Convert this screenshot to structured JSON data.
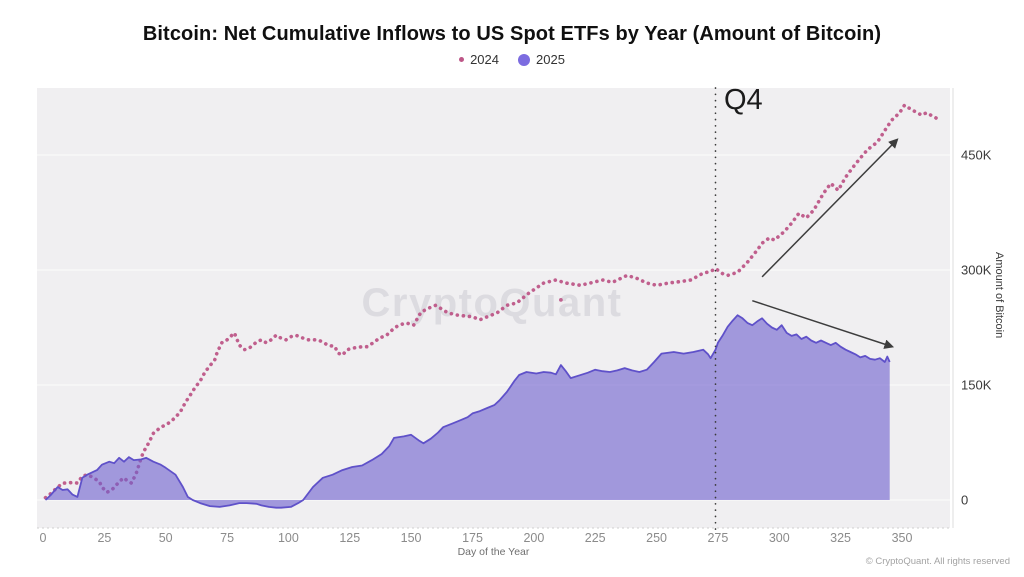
{
  "title": "Bitcoin: Net Cumulative Inflows to US Spot ETFs by Year (Amount of Bitcoin)",
  "watermark": "CryptoQuant",
  "footer": "© CryptoQuant. All rights reserved",
  "legend": [
    {
      "label": "2024",
      "color": "#bd5687",
      "marker": "small-dot"
    },
    {
      "label": "2025",
      "color": "#7c6ce0",
      "marker": "large-dot"
    }
  ],
  "colors": {
    "plot_bg": "#f0eff1",
    "grid": "#fafafa",
    "axis_edge": "#cfcfcf",
    "right_axis_line": "#dddddd",
    "series_2024": "#bd5687",
    "series_2025_stroke": "#5f51c9",
    "series_2025_fill": "#6c5ecf",
    "q4_line": "#3a3a3a",
    "arrow": "#3d3d3d",
    "watermark": "#dcdbe0",
    "x_tick_text": "#8b8b8b",
    "y_tick_text": "#3a3a3a"
  },
  "chart_data": {
    "type": "line",
    "title": "Bitcoin: Net Cumulative Inflows to US Spot ETFs by Year (Amount of Bitcoin)",
    "xlabel": "Day of the Year",
    "ylabel": "Amount of Bitcoin",
    "unit": "thousand BTC",
    "x_range_days": [
      0,
      373
    ],
    "y_range_kbtc": [
      -36,
      537
    ],
    "grid": true,
    "legend_position": "top-center",
    "q4_label": "Q4",
    "q4_line_day": 274,
    "x_ticks": [
      0,
      25,
      50,
      75,
      100,
      125,
      150,
      175,
      200,
      225,
      250,
      275,
      300,
      325,
      350
    ],
    "y_ticks": [
      {
        "value": 0,
        "label": "0"
      },
      {
        "value": 150,
        "label": "150K"
      },
      {
        "value": 300,
        "label": "300K"
      },
      {
        "value": 450,
        "label": "450K"
      }
    ],
    "series": [
      {
        "name": "2024",
        "style": "dotted-line",
        "points": [
          [
            1,
            3
          ],
          [
            3,
            8
          ],
          [
            5,
            14
          ],
          [
            8,
            22
          ],
          [
            10,
            22
          ],
          [
            12,
            23
          ],
          [
            14,
            22
          ],
          [
            16,
            31
          ],
          [
            18,
            33
          ],
          [
            20,
            30
          ],
          [
            21,
            28
          ],
          [
            23,
            24
          ],
          [
            24,
            17
          ],
          [
            26,
            10
          ],
          [
            28,
            13
          ],
          [
            30,
            20
          ],
          [
            31,
            24
          ],
          [
            33,
            29
          ],
          [
            34,
            26
          ],
          [
            36,
            22
          ],
          [
            38,
            35
          ],
          [
            40,
            55
          ],
          [
            41,
            63
          ],
          [
            43,
            74
          ],
          [
            45,
            87
          ],
          [
            48,
            95
          ],
          [
            50,
            98
          ],
          [
            52,
            102
          ],
          [
            54,
            108
          ],
          [
            56,
            115
          ],
          [
            58,
            127
          ],
          [
            60,
            137
          ],
          [
            62,
            147
          ],
          [
            64,
            155
          ],
          [
            66,
            167
          ],
          [
            68,
            175
          ],
          [
            70,
            183
          ],
          [
            71,
            193
          ],
          [
            73,
            206
          ],
          [
            75,
            209
          ],
          [
            78,
            218
          ],
          [
            80,
            202
          ],
          [
            82,
            196
          ],
          [
            84,
            198
          ],
          [
            87,
            206
          ],
          [
            89,
            209
          ],
          [
            91,
            205
          ],
          [
            93,
            209
          ],
          [
            95,
            215
          ],
          [
            97,
            211
          ],
          [
            99,
            209
          ],
          [
            101,
            213
          ],
          [
            103,
            215
          ],
          [
            106,
            211
          ],
          [
            108,
            209
          ],
          [
            110,
            209
          ],
          [
            112,
            209
          ],
          [
            114,
            206
          ],
          [
            116,
            202
          ],
          [
            119,
            200
          ],
          [
            120,
            192
          ],
          [
            122,
            189
          ],
          [
            124,
            196
          ],
          [
            126,
            198
          ],
          [
            130,
            200
          ],
          [
            132,
            200
          ],
          [
            135,
            206
          ],
          [
            137,
            211
          ],
          [
            140,
            215
          ],
          [
            143,
            224
          ],
          [
            145,
            228
          ],
          [
            148,
            231
          ],
          [
            151,
            228
          ],
          [
            154,
            245
          ],
          [
            157,
            250
          ],
          [
            160,
            254
          ],
          [
            163,
            248
          ],
          [
            165,
            244
          ],
          [
            169,
            241
          ],
          [
            172,
            240
          ],
          [
            175,
            239
          ],
          [
            178,
            235
          ],
          [
            181,
            239
          ],
          [
            185,
            244
          ],
          [
            189,
            254
          ],
          [
            193,
            257
          ],
          [
            198,
            270
          ],
          [
            204,
            283
          ],
          [
            209,
            287
          ],
          [
            213,
            283
          ],
          [
            219,
            280
          ],
          [
            223,
            283
          ],
          [
            228,
            287
          ],
          [
            232,
            284
          ],
          [
            238,
            293
          ],
          [
            242,
            289
          ],
          [
            246,
            283
          ],
          [
            250,
            280
          ],
          [
            255,
            283
          ],
          [
            260,
            285
          ],
          [
            264,
            287
          ],
          [
            269,
            296
          ],
          [
            272,
            298
          ],
          [
            274,
            302
          ],
          [
            277,
            295
          ],
          [
            279,
            293
          ],
          [
            283,
            297
          ],
          [
            287,
            310
          ],
          [
            291,
            326
          ],
          [
            293,
            335
          ],
          [
            296,
            342
          ],
          [
            298,
            339
          ],
          [
            302,
            350
          ],
          [
            305,
            361
          ],
          [
            308,
            374
          ],
          [
            311,
            368
          ],
          [
            314,
            378
          ],
          [
            318,
            400
          ],
          [
            321,
            413
          ],
          [
            324,
            404
          ],
          [
            327,
            421
          ],
          [
            330,
            434
          ],
          [
            333,
            446
          ],
          [
            336,
            457
          ],
          [
            340,
            467
          ],
          [
            344,
            487
          ],
          [
            346,
            496
          ],
          [
            349,
            505
          ],
          [
            351,
            515
          ],
          [
            354,
            509
          ],
          [
            358,
            502
          ],
          [
            360,
            505
          ],
          [
            364,
            498
          ]
        ],
        "outlier_point": [
          211,
          261
        ]
      },
      {
        "name": "2025",
        "style": "area",
        "points": [
          [
            1,
            0
          ],
          [
            3,
            6
          ],
          [
            6,
            17
          ],
          [
            8,
            13
          ],
          [
            10,
            14
          ],
          [
            12,
            7
          ],
          [
            14,
            4
          ],
          [
            16,
            29
          ],
          [
            18,
            33
          ],
          [
            22,
            39
          ],
          [
            24,
            46
          ],
          [
            27,
            50
          ],
          [
            29,
            48
          ],
          [
            31,
            55
          ],
          [
            33,
            50
          ],
          [
            35,
            56
          ],
          [
            37,
            52
          ],
          [
            40,
            53
          ],
          [
            42,
            55
          ],
          [
            45,
            50
          ],
          [
            48,
            46
          ],
          [
            50,
            42
          ],
          [
            54,
            33
          ],
          [
            57,
            17
          ],
          [
            59,
            4
          ],
          [
            61,
            0
          ],
          [
            64,
            -4
          ],
          [
            68,
            -8
          ],
          [
            72,
            -9
          ],
          [
            76,
            -7
          ],
          [
            80,
            -4
          ],
          [
            83,
            -4
          ],
          [
            87,
            -5
          ],
          [
            89,
            -7
          ],
          [
            92,
            -9
          ],
          [
            95,
            -10
          ],
          [
            97,
            -10
          ],
          [
            101,
            -9
          ],
          [
            104,
            -4
          ],
          [
            106,
            0
          ],
          [
            110,
            17
          ],
          [
            114,
            29
          ],
          [
            118,
            33
          ],
          [
            122,
            39
          ],
          [
            126,
            43
          ],
          [
            130,
            45
          ],
          [
            134,
            52
          ],
          [
            138,
            60
          ],
          [
            141,
            70
          ],
          [
            143,
            81
          ],
          [
            147,
            83
          ],
          [
            150,
            85
          ],
          [
            153,
            78
          ],
          [
            155,
            74
          ],
          [
            158,
            80
          ],
          [
            161,
            88
          ],
          [
            163,
            95
          ],
          [
            167,
            100
          ],
          [
            170,
            104
          ],
          [
            173,
            108
          ],
          [
            175,
            113
          ],
          [
            178,
            116
          ],
          [
            181,
            120
          ],
          [
            184,
            124
          ],
          [
            186,
            130
          ],
          [
            189,
            141
          ],
          [
            192,
            155
          ],
          [
            194,
            163
          ],
          [
            197,
            167
          ],
          [
            201,
            165
          ],
          [
            204,
            167
          ],
          [
            207,
            166
          ],
          [
            209,
            164
          ],
          [
            211,
            176
          ],
          [
            213,
            168
          ],
          [
            215,
            159
          ],
          [
            218,
            162
          ],
          [
            222,
            166
          ],
          [
            225,
            170
          ],
          [
            228,
            168
          ],
          [
            231,
            167
          ],
          [
            234,
            169
          ],
          [
            237,
            172
          ],
          [
            240,
            169
          ],
          [
            243,
            167
          ],
          [
            246,
            170
          ],
          [
            249,
            180
          ],
          [
            252,
            191
          ],
          [
            257,
            193
          ],
          [
            261,
            191
          ],
          [
            265,
            193
          ],
          [
            269,
            196
          ],
          [
            271,
            190
          ],
          [
            272,
            185
          ],
          [
            274,
            196
          ],
          [
            275,
            205
          ],
          [
            277,
            215
          ],
          [
            279,
            226
          ],
          [
            281,
            234
          ],
          [
            283,
            241
          ],
          [
            285,
            237
          ],
          [
            287,
            231
          ],
          [
            289,
            228
          ],
          [
            291,
            233
          ],
          [
            293,
            237
          ],
          [
            295,
            230
          ],
          [
            297,
            225
          ],
          [
            299,
            222
          ],
          [
            301,
            228
          ],
          [
            303,
            218
          ],
          [
            305,
            214
          ],
          [
            307,
            216
          ],
          [
            309,
            210
          ],
          [
            311,
            213
          ],
          [
            313,
            208
          ],
          [
            315,
            205
          ],
          [
            317,
            208
          ],
          [
            319,
            205
          ],
          [
            321,
            202
          ],
          [
            323,
            205
          ],
          [
            325,
            200
          ],
          [
            327,
            196
          ],
          [
            329,
            193
          ],
          [
            331,
            190
          ],
          [
            333,
            186
          ],
          [
            335,
            188
          ],
          [
            337,
            184
          ],
          [
            339,
            183
          ],
          [
            341,
            185
          ],
          [
            343,
            180
          ],
          [
            344,
            187
          ],
          [
            345,
            180
          ]
        ]
      }
    ],
    "annotations": {
      "arrows": [
        {
          "name": "uptrend-2024",
          "from_day": 293,
          "from_kbtc": 291,
          "to_day": 348,
          "to_kbtc": 470
        },
        {
          "name": "downtrend-2025",
          "from_day": 289,
          "from_kbtc": 260,
          "to_day": 346,
          "to_kbtc": 200
        }
      ]
    }
  }
}
